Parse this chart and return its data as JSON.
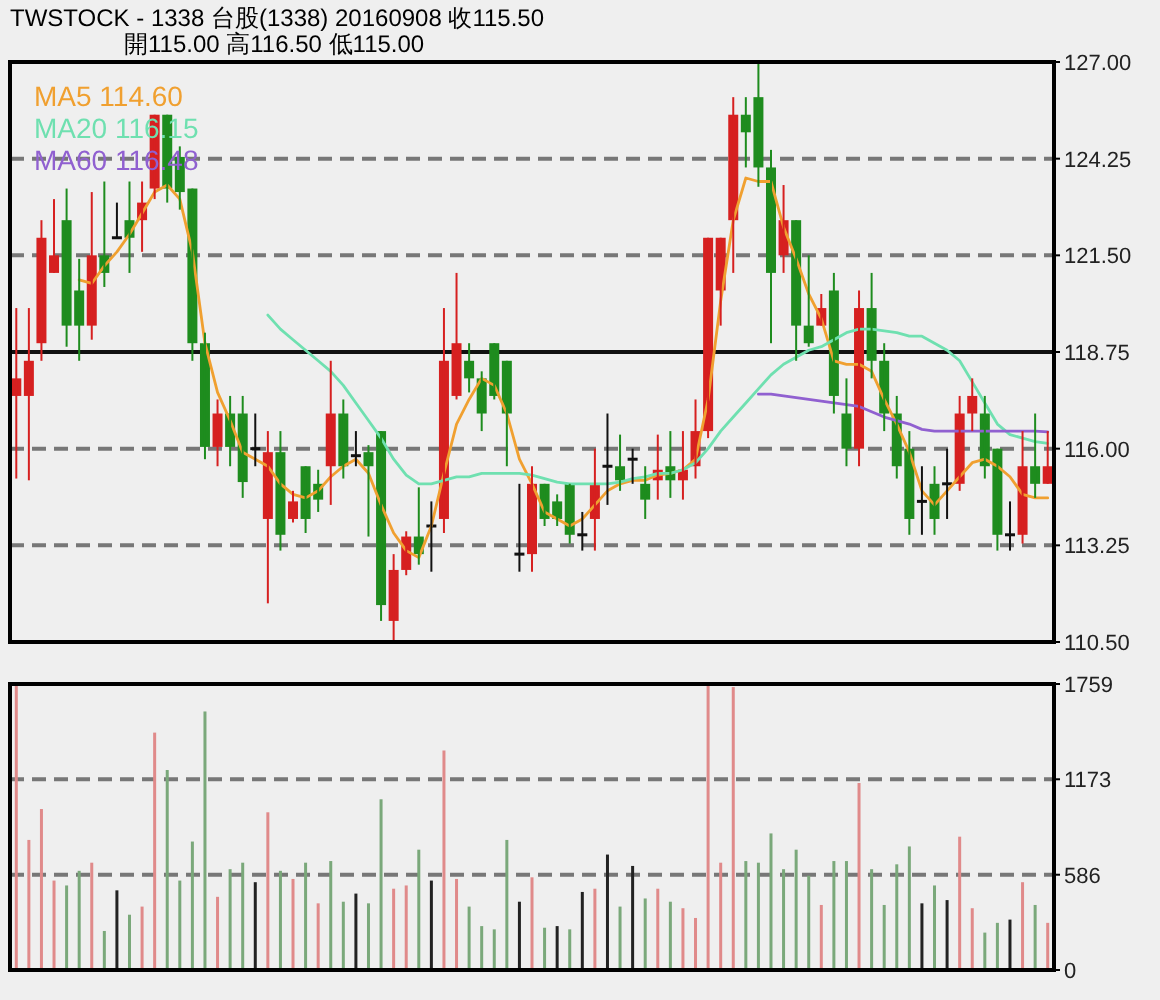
{
  "chart_data": [
    {
      "type": "candlestick",
      "title": "TWSTOCK - 1338  台股(1338) 20160908    收115.50",
      "subtitle": "開115.00    高116.50    低115.00",
      "categories": [
        null,
        null,
        null,
        null,
        null,
        null,
        null,
        null,
        null,
        null,
        null,
        null,
        null,
        null,
        null,
        null,
        null,
        null,
        null,
        null,
        null,
        null,
        null,
        null,
        null,
        null,
        null,
        null,
        null,
        null,
        null,
        null,
        null,
        null,
        null,
        null,
        null,
        null,
        null,
        null,
        null,
        null,
        null,
        null,
        null,
        null,
        null,
        null,
        null,
        null,
        null,
        null,
        null,
        null,
        null,
        null,
        null,
        null,
        null,
        null,
        null,
        null,
        null,
        null,
        null,
        null,
        null,
        null,
        null,
        null,
        null,
        null,
        null,
        null,
        null,
        null,
        null,
        null,
        null,
        null,
        null,
        null,
        null
      ],
      "ohlc": [
        [
          117.5,
          120.0,
          115.15,
          118.0
        ],
        [
          117.5,
          120.0,
          115.1,
          118.5
        ],
        [
          119.0,
          122.5,
          118.5,
          122.0
        ],
        [
          121.0,
          123.1,
          121.0,
          121.5
        ],
        [
          122.5,
          123.4,
          118.9,
          119.5
        ],
        [
          120.5,
          121.4,
          118.5,
          119.5
        ],
        [
          119.5,
          123.3,
          119.1,
          121.5
        ],
        [
          121.5,
          123.6,
          120.6,
          121.0
        ],
        [
          122.0,
          123.0,
          122.0,
          122.0
        ],
        [
          122.5,
          123.6,
          121.0,
          122.0
        ],
        [
          122.5,
          123.6,
          121.6,
          123.0
        ],
        [
          123.4,
          125.5,
          123.1,
          125.5
        ],
        [
          125.5,
          125.5,
          123.0,
          123.4
        ],
        [
          124.3,
          124.6,
          122.8,
          123.3
        ],
        [
          123.4,
          123.4,
          118.5,
          119.0
        ],
        [
          119.0,
          119.3,
          115.7,
          116.05
        ],
        [
          116.05,
          117.4,
          115.5,
          117.0
        ],
        [
          117.0,
          117.5,
          115.5,
          116.05
        ],
        [
          117.0,
          117.5,
          114.6,
          115.05
        ],
        [
          116.0,
          117.0,
          115.5,
          116.0
        ],
        [
          114.0,
          116.5,
          111.6,
          115.9
        ],
        [
          115.9,
          116.5,
          113.1,
          113.55
        ],
        [
          114.0,
          114.8,
          113.9,
          114.5
        ],
        [
          115.5,
          115.5,
          113.6,
          114.0
        ],
        [
          115.0,
          115.4,
          114.2,
          114.55
        ],
        [
          115.5,
          118.5,
          114.4,
          117.0
        ],
        [
          117.0,
          117.4,
          115.15,
          115.5
        ],
        [
          115.8,
          116.5,
          115.5,
          115.8
        ],
        [
          115.9,
          116.1,
          113.5,
          115.5
        ],
        [
          116.5,
          116.5,
          111.1,
          111.55
        ],
        [
          111.1,
          113.0,
          110.5,
          112.55
        ],
        [
          112.55,
          113.65,
          112.4,
          113.5
        ],
        [
          113.5,
          114.9,
          112.7,
          113.0
        ],
        [
          113.8,
          114.5,
          112.5,
          113.8
        ],
        [
          114.0,
          120.0,
          113.6,
          118.5
        ],
        [
          117.5,
          121.0,
          117.4,
          119.0
        ],
        [
          118.5,
          119.0,
          117.6,
          118.0
        ],
        [
          118.0,
          118.2,
          116.5,
          117.0
        ],
        [
          119.0,
          119.0,
          117.4,
          117.5
        ],
        [
          118.5,
          118.5,
          115.5,
          117.0
        ],
        [
          113.0,
          115.0,
          112.5,
          113.0
        ],
        [
          113.0,
          115.5,
          112.5,
          115.0
        ],
        [
          115.0,
          115.0,
          113.8,
          114.0
        ],
        [
          114.5,
          114.7,
          113.8,
          114.0
        ],
        [
          115.0,
          115.0,
          113.3,
          113.55
        ],
        [
          113.55,
          114.2,
          113.1,
          113.55
        ],
        [
          114.0,
          116.0,
          113.1,
          115.0
        ],
        [
          115.5,
          117.0,
          114.4,
          115.5
        ],
        [
          115.5,
          116.4,
          114.8,
          115.1
        ],
        [
          115.7,
          116.0,
          115.0,
          115.7
        ],
        [
          115.0,
          115.5,
          114.0,
          114.55
        ],
        [
          115.1,
          116.4,
          114.55,
          115.4
        ],
        [
          115.5,
          116.5,
          114.6,
          115.1
        ],
        [
          115.1,
          116.5,
          114.55,
          115.4
        ],
        [
          115.5,
          117.4,
          115.15,
          116.5
        ],
        [
          116.5,
          122.0,
          116.3,
          122.0
        ],
        [
          120.5,
          122.0,
          119.5,
          122.0
        ],
        [
          122.5,
          126.0,
          121.0,
          125.5
        ],
        [
          125.5,
          126.0,
          124.0,
          125.0
        ],
        [
          126.0,
          127.0,
          123.45,
          124.0
        ],
        [
          124.0,
          124.5,
          119.0,
          121.0
        ],
        [
          121.5,
          123.5,
          121.0,
          122.5
        ],
        [
          122.5,
          122.5,
          118.5,
          119.5
        ],
        [
          119.5,
          121.5,
          118.9,
          119.0
        ],
        [
          119.5,
          120.4,
          119.5,
          120.0
        ],
        [
          120.5,
          121.0,
          117.0,
          117.5
        ],
        [
          117.0,
          118.0,
          115.5,
          116.0
        ],
        [
          116.0,
          120.5,
          115.5,
          120.0
        ],
        [
          120.0,
          121.0,
          118.0,
          118.5
        ],
        [
          118.5,
          119.0,
          116.5,
          117.0
        ],
        [
          117.0,
          117.5,
          115.15,
          115.5
        ],
        [
          116.0,
          116.5,
          113.55,
          114.0
        ],
        [
          114.5,
          115.5,
          113.55,
          114.5
        ],
        [
          115.0,
          115.5,
          113.55,
          114.0
        ],
        [
          115.0,
          116.0,
          114.0,
          115.0
        ],
        [
          115.0,
          117.5,
          114.8,
          117.0
        ],
        [
          117.0,
          118.0,
          116.5,
          117.5
        ],
        [
          117.0,
          117.5,
          115.15,
          115.5
        ],
        [
          116.0,
          116.0,
          113.1,
          113.55
        ],
        [
          113.55,
          114.5,
          113.1,
          113.55
        ],
        [
          113.55,
          116.5,
          113.3,
          115.5
        ],
        [
          115.5,
          117.0,
          114.6,
          115.0
        ],
        [
          115.0,
          116.5,
          115.0,
          115.5
        ]
      ],
      "colors": [
        "#d62020",
        "#d62020",
        "#d62020",
        "#d62020",
        "#1e8c1e",
        "#1e8c1e",
        "#d62020",
        "#1e8c1e",
        "#111111",
        "#1e8c1e",
        "#d62020",
        "#d62020",
        "#1e8c1e",
        "#1e8c1e",
        "#1e8c1e",
        "#1e8c1e",
        "#d62020",
        "#1e8c1e",
        "#1e8c1e",
        "#111111",
        "#d62020",
        "#1e8c1e",
        "#d62020",
        "#1e8c1e",
        "#1e8c1e",
        "#d62020",
        "#1e8c1e",
        "#111111",
        "#1e8c1e",
        "#1e8c1e",
        "#d62020",
        "#d62020",
        "#1e8c1e",
        "#111111",
        "#d62020",
        "#d62020",
        "#1e8c1e",
        "#1e8c1e",
        "#1e8c1e",
        "#1e8c1e",
        "#111111",
        "#d62020",
        "#1e8c1e",
        "#1e8c1e",
        "#1e8c1e",
        "#111111",
        "#d62020",
        "#111111",
        "#1e8c1e",
        "#111111",
        "#1e8c1e",
        "#d62020",
        "#1e8c1e",
        "#d62020",
        "#d62020",
        "#d62020",
        "#d62020",
        "#d62020",
        "#1e8c1e",
        "#1e8c1e",
        "#1e8c1e",
        "#d62020",
        "#1e8c1e",
        "#1e8c1e",
        "#d62020",
        "#1e8c1e",
        "#1e8c1e",
        "#d62020",
        "#1e8c1e",
        "#1e8c1e",
        "#1e8c1e",
        "#1e8c1e",
        "#111111",
        "#1e8c1e",
        "#111111",
        "#d62020",
        "#d62020",
        "#1e8c1e",
        "#1e8c1e",
        "#111111",
        "#d62020",
        "#1e8c1e",
        "#d62020"
      ],
      "series": [
        {
          "name": "MA5 114.60",
          "type": "line",
          "color": "#f0a030",
          "values": [
            null,
            null,
            null,
            null,
            null,
            120.8,
            120.7,
            121.2,
            121.6,
            122.1,
            122.7,
            123.3,
            123.5,
            123.1,
            121.6,
            119.0,
            117.6,
            116.8,
            115.9,
            115.7,
            115.5,
            115.0,
            114.7,
            114.6,
            114.8,
            115.2,
            115.5,
            115.7,
            115.3,
            114.4,
            113.6,
            113.1,
            112.9,
            113.8,
            115.3,
            116.7,
            117.4,
            118.0,
            117.8,
            117.0,
            115.7,
            115.0,
            114.2,
            114.0,
            113.8,
            114.0,
            114.4,
            114.8,
            115.0,
            115.1,
            115.1,
            115.25,
            115.3,
            115.4,
            115.7,
            117.4,
            120.2,
            122.5,
            123.7,
            123.6,
            123.6,
            122.3,
            121.4,
            120.4,
            119.7,
            118.5,
            118.4,
            118.4,
            118.2,
            117.4,
            116.7,
            115.9,
            114.8,
            114.4,
            114.8,
            115.2,
            115.6,
            115.7,
            115.5,
            115.2,
            114.7,
            114.6,
            114.6
          ]
        },
        {
          "name": "MA20 116.15",
          "type": "line",
          "color": "#6fe0b0",
          "values": [
            null,
            null,
            null,
            null,
            null,
            null,
            null,
            null,
            null,
            null,
            null,
            null,
            null,
            null,
            null,
            null,
            null,
            null,
            null,
            null,
            119.8,
            119.4,
            119.1,
            118.8,
            118.5,
            118.2,
            117.8,
            117.3,
            116.8,
            116.3,
            115.7,
            115.25,
            115.0,
            115.0,
            115.1,
            115.2,
            115.2,
            115.3,
            115.3,
            115.3,
            115.3,
            115.25,
            115.15,
            115.05,
            115.0,
            115.0,
            115.0,
            115.0,
            115.05,
            115.15,
            115.2,
            115.3,
            115.3,
            115.4,
            115.6,
            116.0,
            116.5,
            116.9,
            117.3,
            117.7,
            118.1,
            118.4,
            118.6,
            118.8,
            118.9,
            119.1,
            119.3,
            119.4,
            119.4,
            119.35,
            119.3,
            119.2,
            119.2,
            119.0,
            118.8,
            118.5,
            117.9,
            117.3,
            116.7,
            116.4,
            116.3,
            116.2,
            116.15
          ]
        },
        {
          "name": "MA60 116.48",
          "type": "line",
          "color": "#9060d0",
          "values": [
            null,
            null,
            null,
            null,
            null,
            null,
            null,
            null,
            null,
            null,
            null,
            null,
            null,
            null,
            null,
            null,
            null,
            null,
            null,
            null,
            null,
            null,
            null,
            null,
            null,
            null,
            null,
            null,
            null,
            null,
            null,
            null,
            null,
            null,
            null,
            null,
            null,
            null,
            null,
            null,
            null,
            null,
            null,
            null,
            null,
            null,
            null,
            null,
            null,
            null,
            null,
            null,
            null,
            null,
            null,
            null,
            null,
            null,
            null,
            117.55,
            117.55,
            117.5,
            117.45,
            117.4,
            117.35,
            117.3,
            117.25,
            117.2,
            117.05,
            116.9,
            116.8,
            116.7,
            116.55,
            116.5,
            116.5,
            116.5,
            116.5,
            116.5,
            116.5,
            116.5,
            116.5,
            116.5,
            116.48
          ]
        }
      ],
      "ylim": [
        110.5,
        127
      ],
      "yticks": [
        {
          "value": 110.5,
          "label": "110.50"
        },
        {
          "value": 113.25,
          "label": "113.25"
        },
        {
          "value": 116,
          "label": "116.00"
        },
        {
          "value": 118.75,
          "label": "118.75"
        },
        {
          "value": 121.5,
          "label": "121.50"
        },
        {
          "value": 124.25,
          "label": "124.25"
        },
        {
          "value": 127,
          "label": "127.00"
        }
      ],
      "grid": "y",
      "ref_lines": [
        {
          "axis": "y",
          "value": 118.75,
          "color": "#111111",
          "line_style": "solid"
        }
      ],
      "legend": "top left"
    },
    {
      "type": "bar",
      "categories": [
        null,
        null,
        null,
        null,
        null,
        null,
        null,
        null,
        null,
        null,
        null,
        null,
        null,
        null,
        null,
        null,
        null,
        null,
        null,
        null,
        null,
        null,
        null,
        null,
        null,
        null,
        null,
        null,
        null,
        null,
        null,
        null,
        null,
        null,
        null,
        null,
        null,
        null,
        null,
        null,
        null,
        null,
        null,
        null,
        null,
        null,
        null,
        null,
        null,
        null,
        null,
        null,
        null,
        null,
        null,
        null,
        null,
        null,
        null,
        null,
        null,
        null,
        null,
        null,
        null,
        null,
        null,
        null,
        null,
        null,
        null,
        null,
        null,
        null,
        null,
        null,
        null,
        null,
        null,
        null,
        null,
        null,
        null
      ],
      "values": [
        1759,
        800,
        990,
        550,
        520,
        610,
        660,
        240,
        490,
        340,
        390,
        1460,
        1230,
        550,
        790,
        1590,
        450,
        620,
        660,
        540,
        970,
        610,
        560,
        660,
        410,
        670,
        420,
        470,
        410,
        1050,
        500,
        520,
        740,
        550,
        1350,
        560,
        390,
        270,
        250,
        800,
        420,
        570,
        260,
        270,
        250,
        480,
        500,
        710,
        390,
        640,
        440,
        500,
        420,
        380,
        320,
        1759,
        660,
        1740,
        670,
        660,
        840,
        620,
        740,
        580,
        400,
        670,
        670,
        1150,
        620,
        400,
        650,
        760,
        410,
        520,
        430,
        820,
        380,
        230,
        290,
        310,
        540,
        400,
        290
      ],
      "colors": [
        "#e08a8a",
        "#e08a8a",
        "#e08a8a",
        "#e08a8a",
        "#7aa87a",
        "#7aa87a",
        "#e08a8a",
        "#7aa87a",
        "#222222",
        "#7aa87a",
        "#e08a8a",
        "#e08a8a",
        "#7aa87a",
        "#7aa87a",
        "#7aa87a",
        "#7aa87a",
        "#e08a8a",
        "#7aa87a",
        "#7aa87a",
        "#222222",
        "#e08a8a",
        "#7aa87a",
        "#e08a8a",
        "#7aa87a",
        "#e08a8a",
        "#7aa87a",
        "#7aa87a",
        "#222222",
        "#7aa87a",
        "#7aa87a",
        "#e08a8a",
        "#e08a8a",
        "#7aa87a",
        "#222222",
        "#e08a8a",
        "#e08a8a",
        "#7aa87a",
        "#7aa87a",
        "#7aa87a",
        "#7aa87a",
        "#222222",
        "#e08a8a",
        "#7aa87a",
        "#222222",
        "#7aa87a",
        "#222222",
        "#e08a8a",
        "#222222",
        "#7aa87a",
        "#222222",
        "#7aa87a",
        "#e08a8a",
        "#7aa87a",
        "#e08a8a",
        "#e08a8a",
        "#e08a8a",
        "#e08a8a",
        "#e08a8a",
        "#7aa87a",
        "#7aa87a",
        "#7aa87a",
        "#7aa87a",
        "#7aa87a",
        "#7aa87a",
        "#e08a8a",
        "#7aa87a",
        "#7aa87a",
        "#e08a8a",
        "#7aa87a",
        "#7aa87a",
        "#7aa87a",
        "#7aa87a",
        "#222222",
        "#7aa87a",
        "#222222",
        "#e08a8a",
        "#e08a8a",
        "#7aa87a",
        "#7aa87a",
        "#222222",
        "#e08a8a",
        "#7aa87a",
        "#e08a8a"
      ],
      "ylim": [
        0,
        1759
      ],
      "yticks": [
        0,
        586,
        1173,
        1759
      ],
      "grid": "y"
    }
  ]
}
